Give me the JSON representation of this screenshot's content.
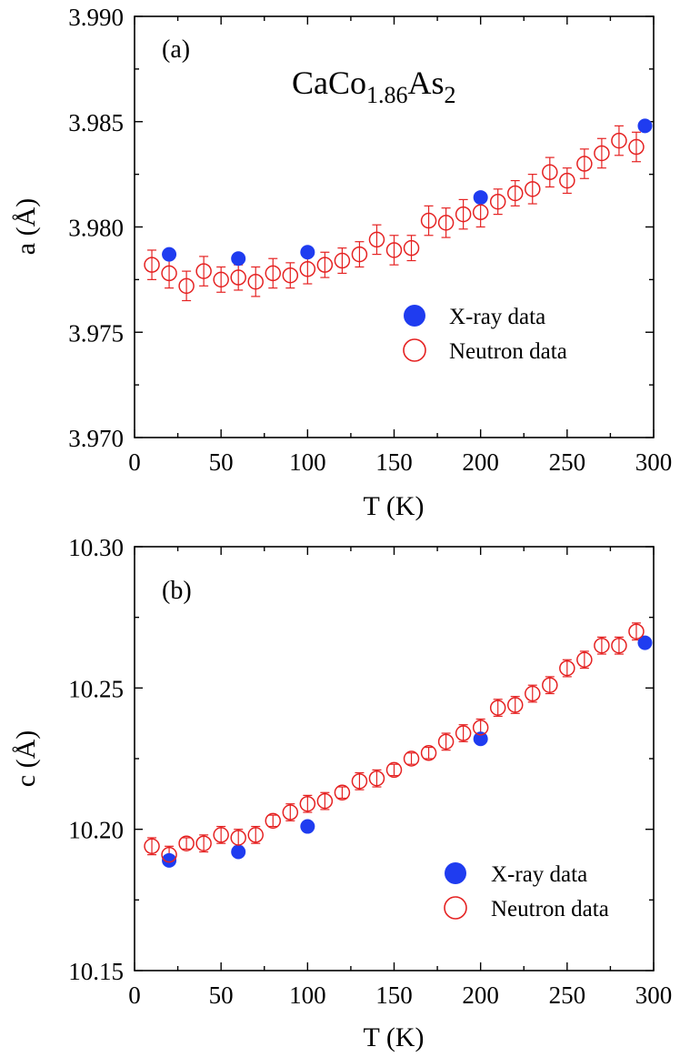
{
  "colors": {
    "xray": "#1f3cf0",
    "neutron": "#e52222"
  },
  "chart_data": [
    {
      "type": "scatter",
      "panel": "(a)",
      "title": "CaCo1.86As2",
      "compound": {
        "base": "CaCo",
        "sub1": "1.86",
        "mid": "As",
        "sub2": "2"
      },
      "xlabel": "T (K)",
      "ylabel": "a (Å)",
      "xlim": [
        0,
        300
      ],
      "ylim": [
        3.97,
        3.99
      ],
      "xticks": [
        0,
        50,
        100,
        150,
        200,
        250,
        300
      ],
      "yticks": [
        3.97,
        3.975,
        3.98,
        3.985,
        3.99
      ],
      "ytick_labels": [
        "3.970",
        "3.975",
        "3.980",
        "3.985",
        "3.990"
      ],
      "legend_position": "lower-right",
      "series": [
        {
          "name": "X-ray data",
          "marker": "filled-circle",
          "x": [
            20,
            60,
            100,
            200,
            295
          ],
          "y": [
            3.9787,
            3.9785,
            3.9788,
            3.9814,
            3.9848
          ]
        },
        {
          "name": "Neutron data",
          "marker": "open-circle",
          "x": [
            10,
            20,
            30,
            40,
            50,
            60,
            70,
            80,
            90,
            100,
            110,
            120,
            130,
            140,
            150,
            160,
            170,
            180,
            190,
            200,
            210,
            220,
            230,
            240,
            250,
            260,
            270,
            280,
            290
          ],
          "y": [
            3.9782,
            3.9778,
            3.9772,
            3.9779,
            3.9775,
            3.9776,
            3.9774,
            3.9778,
            3.9777,
            3.978,
            3.9782,
            3.9784,
            3.9787,
            3.9794,
            3.9789,
            3.979,
            3.9803,
            3.9802,
            3.9806,
            3.9807,
            3.9812,
            3.9816,
            3.9818,
            3.9826,
            3.9822,
            3.983,
            3.9835,
            3.9841,
            3.9838
          ],
          "yerr": [
            0.0007,
            0.0007,
            0.0007,
            0.0007,
            0.0006,
            0.0006,
            0.0007,
            0.0007,
            0.0006,
            0.0007,
            0.0006,
            0.0006,
            0.0006,
            0.0007,
            0.0007,
            0.0006,
            0.0007,
            0.0007,
            0.0007,
            0.0007,
            0.0006,
            0.0006,
            0.0007,
            0.0007,
            0.0006,
            0.0007,
            0.0007,
            0.0007,
            0.0007
          ]
        }
      ]
    },
    {
      "type": "scatter",
      "panel": "(b)",
      "xlabel": "T (K)",
      "ylabel": "c (Å)",
      "xlim": [
        0,
        300
      ],
      "ylim": [
        10.15,
        10.3
      ],
      "xticks": [
        0,
        50,
        100,
        150,
        200,
        250,
        300
      ],
      "yticks": [
        10.15,
        10.2,
        10.25,
        10.3
      ],
      "ytick_labels": [
        "10.15",
        "10.20",
        "10.25",
        "10.30"
      ],
      "legend_position": "lower-right",
      "series": [
        {
          "name": "X-ray data",
          "marker": "filled-circle",
          "x": [
            20,
            60,
            100,
            200,
            295
          ],
          "y": [
            10.189,
            10.192,
            10.201,
            10.232,
            10.266
          ]
        },
        {
          "name": "Neutron data",
          "marker": "open-circle",
          "x": [
            10,
            20,
            30,
            40,
            50,
            60,
            70,
            80,
            90,
            100,
            110,
            120,
            130,
            140,
            150,
            160,
            170,
            180,
            190,
            200,
            210,
            220,
            230,
            240,
            250,
            260,
            270,
            280,
            290
          ],
          "y": [
            10.194,
            10.191,
            10.195,
            10.195,
            10.198,
            10.197,
            10.198,
            10.203,
            10.206,
            10.209,
            10.21,
            10.213,
            10.217,
            10.218,
            10.221,
            10.225,
            10.227,
            10.231,
            10.234,
            10.236,
            10.243,
            10.244,
            10.248,
            10.251,
            10.257,
            10.26,
            10.265,
            10.265,
            10.27
          ],
          "yerr": [
            0.003,
            0.003,
            0.002,
            0.003,
            0.003,
            0.003,
            0.003,
            0.002,
            0.003,
            0.003,
            0.003,
            0.002,
            0.003,
            0.003,
            0.002,
            0.002,
            0.002,
            0.003,
            0.003,
            0.003,
            0.003,
            0.003,
            0.003,
            0.003,
            0.003,
            0.003,
            0.003,
            0.003,
            0.003
          ]
        }
      ]
    }
  ]
}
